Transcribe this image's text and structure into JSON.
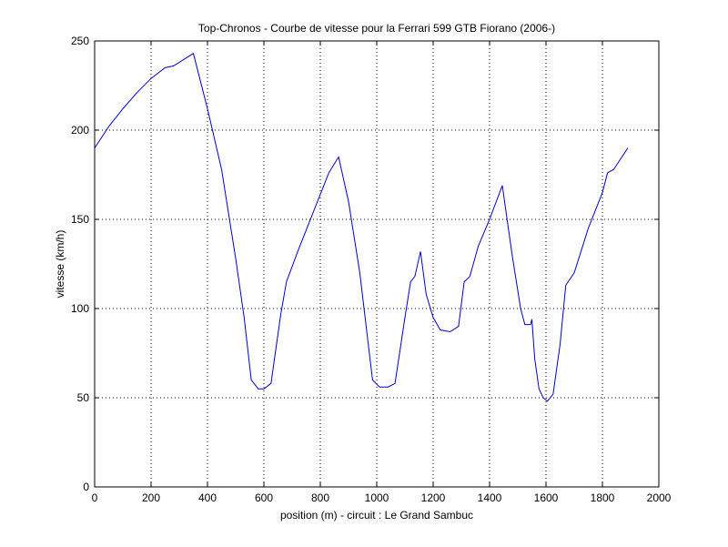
{
  "chart_data": {
    "type": "line",
    "title": "Top-Chronos - Courbe de vitesse pour la Ferrari 599 GTB Fiorano (2006-)",
    "xlabel": "position (m) - circuit : Le Grand Sambuc",
    "ylabel": "vitesse (km/h)",
    "xlim": [
      0,
      2000
    ],
    "ylim": [
      0,
      250
    ],
    "xticks": [
      0,
      200,
      400,
      600,
      800,
      1000,
      1200,
      1400,
      1600,
      1800,
      2000
    ],
    "yticks": [
      0,
      50,
      100,
      150,
      200,
      250
    ],
    "grid": true,
    "series_color": "#0000c8",
    "series": [
      {
        "x": [
          0,
          50,
          100,
          150,
          200,
          250,
          280,
          350,
          400,
          450,
          500,
          530,
          555,
          580,
          600,
          625,
          660,
          680,
          720,
          770,
          810,
          830,
          865,
          900,
          940,
          970,
          985,
          1010,
          1040,
          1065,
          1100,
          1120,
          1135,
          1155,
          1175,
          1200,
          1225,
          1260,
          1290,
          1310,
          1330,
          1360,
          1400,
          1445,
          1480,
          1510,
          1525,
          1545,
          1550,
          1560,
          1575,
          1590,
          1605,
          1625,
          1650,
          1670,
          1700,
          1750,
          1800,
          1818,
          1840,
          1890
        ],
        "y": [
          190,
          202,
          212,
          221,
          229,
          235,
          236,
          243,
          212,
          178,
          128,
          95,
          60,
          55,
          55,
          58,
          97,
          115,
          132,
          152,
          168,
          176,
          185,
          160,
          120,
          80,
          60,
          56,
          56,
          58,
          95,
          115,
          118,
          132,
          108,
          95,
          88,
          87,
          90,
          115,
          118,
          135,
          150,
          169,
          130,
          100,
          91,
          91,
          94,
          72,
          55,
          50,
          48,
          52,
          80,
          113,
          120,
          145,
          165,
          176,
          178,
          190
        ]
      }
    ]
  }
}
